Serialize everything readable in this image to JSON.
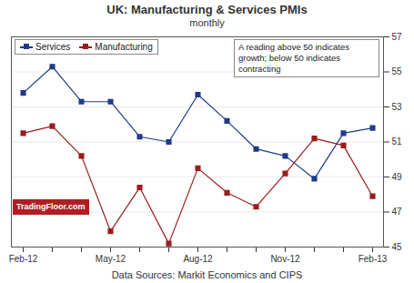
{
  "chart_data": {
    "type": "line",
    "title": "UK: Manufacturing & Services PMIs",
    "subtitle": "monthly",
    "caption": "Data Sources: Markit Economics and CIPS",
    "annotations": [
      "A reading above 50 indicates growth; below 50 indicates contracting",
      "TradingFloor.com"
    ],
    "categories": [
      "Feb-12",
      null,
      null,
      "May-12",
      null,
      null,
      "Aug-12",
      null,
      null,
      "Nov-12",
      null,
      null,
      "Feb-13"
    ],
    "series": [
      {
        "name": "Services",
        "color": "#1f3a8a",
        "marker": "square",
        "values": [
          53.8,
          55.3,
          53.3,
          53.3,
          51.3,
          51.0,
          53.7,
          52.2,
          50.6,
          50.2,
          48.9,
          51.5,
          51.8
        ]
      },
      {
        "name": "Manufacturing",
        "color": "#9b1c1c",
        "marker": "square",
        "values": [
          51.5,
          51.9,
          50.2,
          45.9,
          48.4,
          45.2,
          49.5,
          48.1,
          47.3,
          49.2,
          51.2,
          50.8,
          47.9
        ]
      }
    ],
    "ylim": [
      45,
      57
    ],
    "yticks": [
      45,
      47,
      49,
      51,
      53,
      55,
      57
    ],
    "grid": true,
    "legend": "top-left"
  }
}
